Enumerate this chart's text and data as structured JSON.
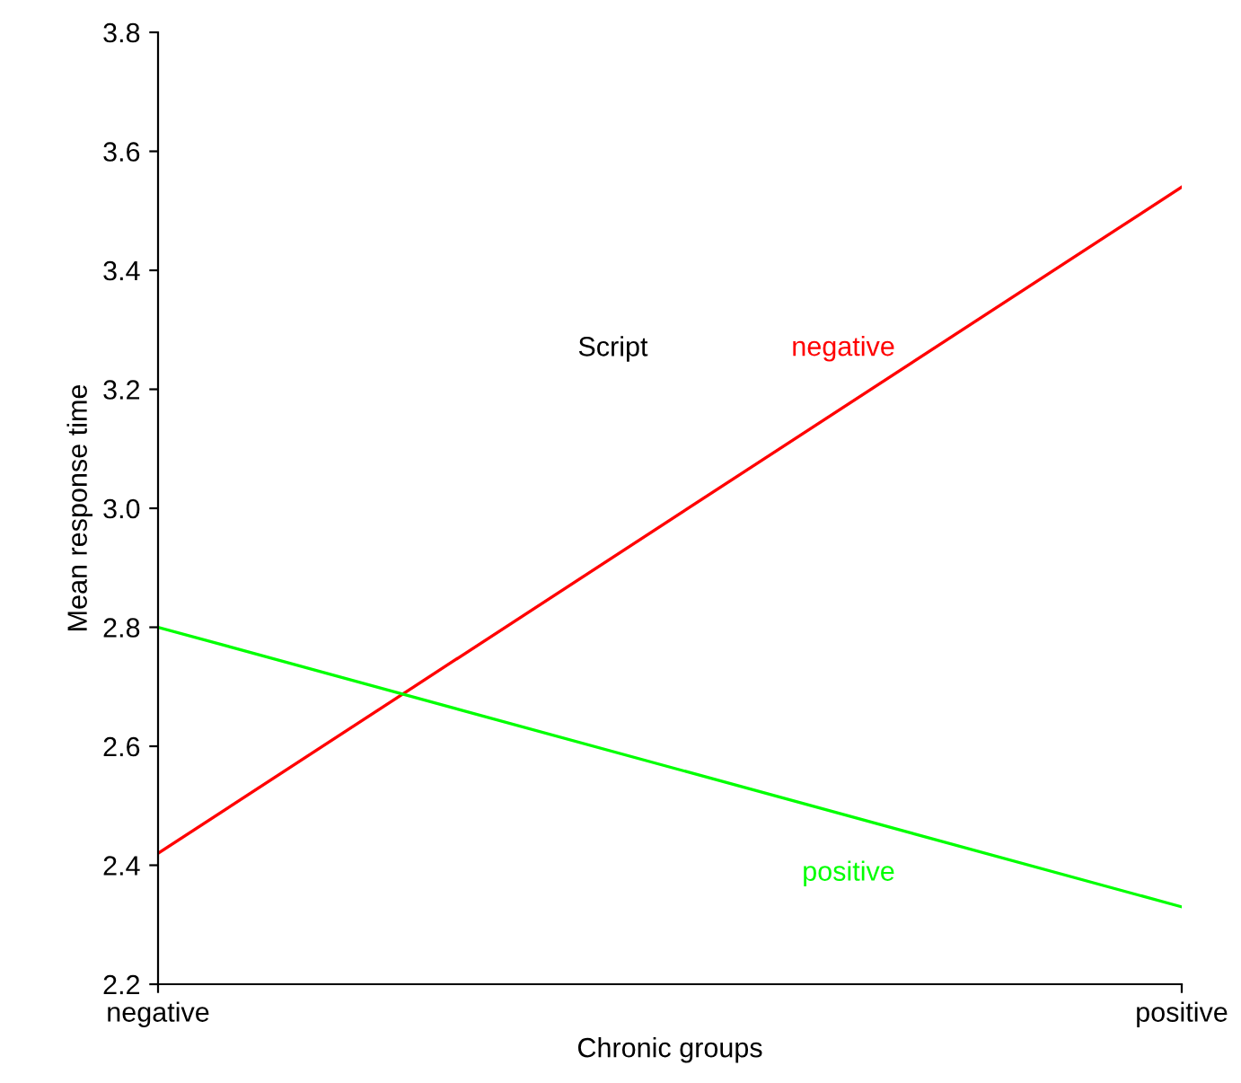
{
  "chart_data": {
    "type": "line",
    "xlabel": "Chronic groups",
    "ylabel": "Mean response time",
    "legend_title": "Script",
    "categories": [
      "negative",
      "positive"
    ],
    "series": [
      {
        "name": "negative",
        "color": "#ff0000",
        "values": [
          2.42,
          3.54
        ]
      },
      {
        "name": "positive",
        "color": "#00ff00",
        "values": [
          2.8,
          2.33
        ]
      }
    ],
    "ylim": [
      2.2,
      3.8
    ],
    "yticks": [
      2.2,
      2.4,
      2.6,
      2.8,
      {
        "value": 3.0,
        "label": "3.0"
      },
      3.2,
      3.4,
      3.6,
      3.8
    ],
    "grid": false,
    "legend": false,
    "marker": "none",
    "line_style": "solid"
  }
}
